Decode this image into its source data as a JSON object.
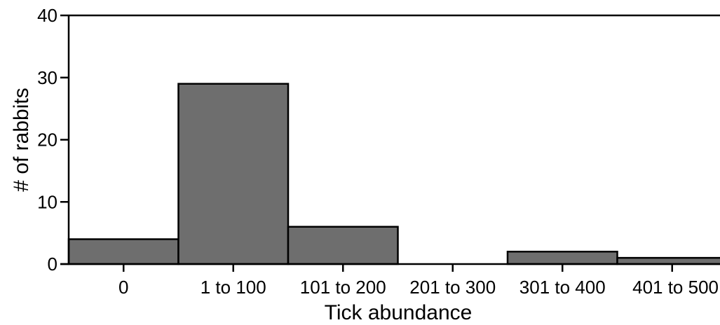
{
  "chart_data": {
    "type": "bar",
    "title": "",
    "xlabel": "Tick abundance",
    "ylabel": "# of rabbits",
    "categories": [
      "0",
      "1 to 100",
      "101 to 200",
      "201 to 300",
      "301 to 400",
      "401 to 500"
    ],
    "values": [
      4,
      29,
      6,
      0,
      2,
      1
    ],
    "ylim": [
      0,
      40
    ],
    "yticks": [
      "0",
      "10",
      "20",
      "30",
      "40"
    ],
    "grid": false,
    "bar_color": "#6e6e6e",
    "bar_edge_color": "#000000"
  }
}
